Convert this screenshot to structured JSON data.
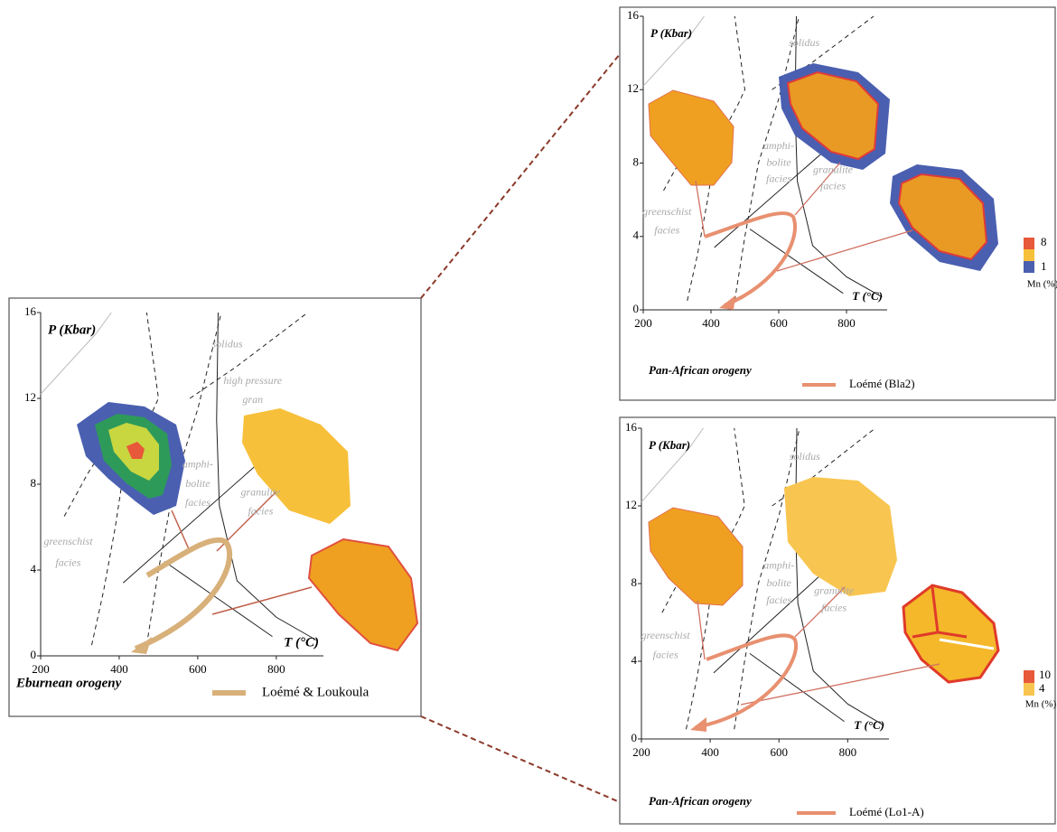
{
  "panels": [
    {
      "title": "Eburnean orogeny",
      "y_label": "P (Kbar)",
      "x_label": "T (°C)",
      "xlim": [
        200,
        920
      ],
      "ylim": [
        0,
        16
      ],
      "xticks": [
        200,
        400,
        600,
        800
      ],
      "yticks": [
        0,
        4,
        8,
        12,
        16
      ],
      "legend": "Loémé & Loukoula",
      "facies_labels": [
        "greenschist",
        "facies",
        "amphi-",
        "bolite",
        "facies",
        "granulite",
        "facies",
        "high pressure",
        "gran",
        "solidus"
      ]
    },
    {
      "title": "Pan-African orogeny",
      "y_label": "P (Kbar)",
      "x_label": "T (°C)",
      "xlim": [
        200,
        920
      ],
      "ylim": [
        0,
        16
      ],
      "xticks": [
        200,
        400,
        600,
        800
      ],
      "yticks": [
        0,
        4,
        8,
        12,
        16
      ],
      "legend": "Loémé (Bla2)",
      "facies_labels": [
        "greenschist",
        "facies",
        "amphi-",
        "bolite",
        "facies",
        "granulite",
        "facies",
        "solidus"
      ],
      "colorbar": {
        "labels": [
          "8",
          "1"
        ],
        "unit": "Mn (%)"
      }
    },
    {
      "title": "Pan-African orogeny",
      "y_label": "P (Kbar)",
      "x_label": "T (°C)",
      "xlim": [
        200,
        920
      ],
      "ylim": [
        0,
        16
      ],
      "xticks": [
        200,
        400,
        600,
        800
      ],
      "yticks": [
        0,
        4,
        8,
        12,
        16
      ],
      "legend": "Loémé (Lo1-A)",
      "facies_labels": [
        "greenschist",
        "facies",
        "amphi-",
        "bolite",
        "facies",
        "granulite",
        "facies",
        "solidus"
      ],
      "colorbar": {
        "labels": [
          "10",
          "4"
        ],
        "unit": "Mn (%)"
      }
    }
  ]
}
